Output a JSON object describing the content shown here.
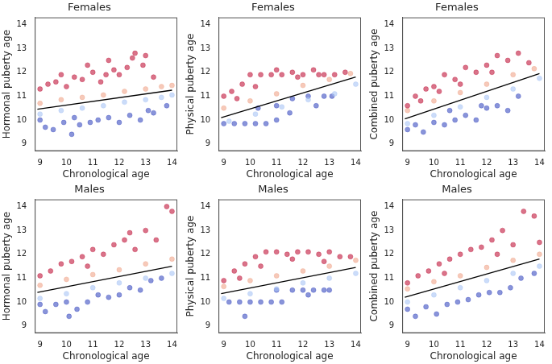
{
  "chart_data": [
    {
      "type": "scatter",
      "title": "Females",
      "x_label": "Chronological age",
      "y_label": "Hormonal puberty age",
      "xlim": [
        8.8,
        14.2
      ],
      "ylim": [
        8.7,
        14.3
      ],
      "xticks": [
        9,
        10,
        11,
        12,
        13,
        14
      ],
      "yticks": [
        9,
        10,
        11,
        12,
        13,
        14
      ],
      "grid": false,
      "series": [
        {
          "color": "#c0163a",
          "marker": "circle",
          "x": [
            9,
            9.3,
            9.6,
            10,
            10.3,
            10.6,
            11,
            11.3,
            11.6,
            12,
            12.3,
            12.6,
            13,
            13.3,
            10.8,
            11.8,
            12.5,
            9.8,
            12.9,
            11.5
          ],
          "y": [
            11.3,
            11.5,
            11.6,
            11.4,
            11.8,
            11.7,
            12.0,
            11.6,
            12.5,
            11.9,
            12.2,
            12.8,
            12.7,
            11.8,
            12.3,
            12.1,
            12.6,
            11.9,
            12.3,
            11.9
          ]
        },
        {
          "color": "#f0a58a",
          "marker": "circle",
          "x": [
            9,
            9.8,
            10.6,
            11.4,
            12.2,
            13,
            13.6,
            14
          ],
          "y": [
            10.7,
            10.85,
            10.95,
            11.05,
            11.2,
            11.3,
            11.4,
            11.45
          ]
        },
        {
          "color": "#a9c4f5",
          "marker": "circle",
          "x": [
            9,
            9.8,
            10.6,
            11.4,
            12.2,
            13,
            13.6,
            14
          ],
          "y": [
            10.25,
            10.4,
            10.5,
            10.6,
            10.75,
            10.85,
            10.95,
            11.05
          ]
        },
        {
          "color": "#3b4cc0",
          "marker": "circle",
          "x": [
            9,
            9.2,
            9.5,
            9.9,
            10.2,
            10.5,
            10.9,
            11.2,
            11.6,
            12,
            12.4,
            12.8,
            13.1,
            13.3,
            13.8,
            10.3
          ],
          "y": [
            10.0,
            9.7,
            9.6,
            9.9,
            9.4,
            9.8,
            9.9,
            10.0,
            10.1,
            9.9,
            10.2,
            10.0,
            10.4,
            10.3,
            10.6,
            10.1
          ]
        },
        {
          "type": "line",
          "color": "#000000",
          "line_style": "solid",
          "x": [
            8.9,
            14
          ],
          "y": [
            10.45,
            11.25
          ]
        }
      ]
    },
    {
      "type": "scatter",
      "title": "Females",
      "x_label": "Chronological age",
      "y_label": "Physical puberty age",
      "xlim": [
        8.8,
        14.2
      ],
      "ylim": [
        8.7,
        14.3
      ],
      "xticks": [
        9,
        10,
        11,
        12,
        13,
        14
      ],
      "yticks": [
        9,
        10,
        11,
        12,
        13,
        14
      ],
      "grid": false,
      "series": [
        {
          "color": "#c0163a",
          "marker": "circle",
          "x": [
            9,
            9.3,
            9.7,
            10,
            10.4,
            10.8,
            11.2,
            11.6,
            12,
            12.4,
            12.8,
            13.2,
            13.6,
            10.2,
            11,
            11.8,
            12.6,
            9.5
          ],
          "y": [
            11.0,
            11.2,
            11.5,
            11.9,
            11.9,
            11.9,
            11.9,
            12.0,
            11.9,
            12.1,
            11.9,
            11.9,
            12.0,
            11.4,
            12.1,
            11.8,
            11.9,
            10.9
          ]
        },
        {
          "color": "#f0a58a",
          "marker": "circle",
          "x": [
            9,
            10,
            11,
            12,
            13,
            13.8
          ],
          "y": [
            10.5,
            10.8,
            11.1,
            11.45,
            11.7,
            11.95
          ]
        },
        {
          "color": "#a9c4f5",
          "marker": "circle",
          "x": [
            9.2,
            10.2,
            11.2,
            12.2,
            13.2,
            14
          ],
          "y": [
            9.95,
            10.25,
            10.55,
            10.85,
            11.1,
            11.5
          ]
        },
        {
          "color": "#3b4cc0",
          "marker": "circle",
          "x": [
            9,
            9.4,
            9.8,
            10.2,
            10.6,
            11,
            10.3,
            11,
            11.6,
            12.2,
            12.8,
            13.1,
            11.5,
            12.5
          ],
          "y": [
            9.85,
            9.85,
            9.85,
            9.85,
            9.85,
            10.0,
            10.5,
            10.6,
            10.9,
            11.0,
            11.0,
            11.0,
            10.3,
            10.6
          ]
        },
        {
          "type": "line",
          "color": "#000000",
          "line_style": "solid",
          "x": [
            8.9,
            14
          ],
          "y": [
            10.1,
            11.8
          ]
        }
      ]
    },
    {
      "type": "scatter",
      "title": "Females",
      "x_label": "Chronological age",
      "y_label": "Combined puberty age",
      "xlim": [
        8.8,
        14.2
      ],
      "ylim": [
        8.7,
        14.3
      ],
      "xticks": [
        9,
        10,
        11,
        12,
        13,
        14
      ],
      "yticks": [
        9,
        10,
        11,
        12,
        13,
        14
      ],
      "grid": false,
      "series": [
        {
          "color": "#c0163a",
          "marker": "circle",
          "x": [
            9,
            9.3,
            9.7,
            10,
            10.4,
            10.8,
            11.2,
            11.6,
            12,
            12.4,
            12.8,
            13.2,
            13.6,
            10.2,
            11,
            12.2,
            9.5
          ],
          "y": [
            10.6,
            11.0,
            11.3,
            11.4,
            11.9,
            11.7,
            12.2,
            12.0,
            12.3,
            12.7,
            12.5,
            12.8,
            12.4,
            11.2,
            11.5,
            12.0,
            10.8
          ]
        },
        {
          "color": "#f0a58a",
          "marker": "circle",
          "x": [
            9,
            10,
            11,
            12,
            13,
            13.8
          ],
          "y": [
            10.4,
            10.8,
            11.15,
            11.5,
            11.9,
            12.15
          ]
        },
        {
          "color": "#a9c4f5",
          "marker": "circle",
          "x": [
            9,
            10,
            11,
            12,
            13,
            14
          ],
          "y": [
            9.85,
            10.2,
            10.55,
            10.95,
            11.3,
            11.75
          ]
        },
        {
          "color": "#3b4cc0",
          "marker": "circle",
          "x": [
            9,
            9.3,
            9.6,
            10,
            10.4,
            10.8,
            11.2,
            11.6,
            12,
            12.4,
            12.8,
            13.2,
            10.6,
            11.8
          ],
          "y": [
            9.6,
            9.8,
            9.5,
            9.9,
            9.8,
            10.0,
            10.2,
            10.0,
            10.5,
            10.6,
            10.4,
            11.0,
            10.4,
            10.6
          ]
        },
        {
          "type": "line",
          "color": "#000000",
          "line_style": "solid",
          "x": [
            8.9,
            14
          ],
          "y": [
            10.05,
            11.95
          ]
        }
      ]
    },
    {
      "type": "scatter",
      "title": "Males",
      "x_label": "Chronological age",
      "y_label": "Hormonal puberty age",
      "xlim": [
        8.8,
        14.2
      ],
      "ylim": [
        8.7,
        14.3
      ],
      "xticks": [
        9,
        10,
        11,
        12,
        13,
        14
      ],
      "yticks": [
        9,
        10,
        11,
        12,
        13,
        14
      ],
      "grid": false,
      "series": [
        {
          "color": "#c0163a",
          "marker": "circle",
          "x": [
            9,
            9.4,
            9.8,
            10.2,
            10.6,
            11,
            11.4,
            11.8,
            12.2,
            12.6,
            13,
            13.4,
            13.8,
            14,
            10.8,
            12.4
          ],
          "y": [
            11.1,
            11.3,
            11.6,
            11.7,
            11.9,
            12.2,
            12.0,
            12.4,
            12.6,
            12.2,
            13.0,
            12.6,
            14.0,
            13.8,
            11.5,
            12.9
          ]
        },
        {
          "color": "#f0a58a",
          "marker": "circle",
          "x": [
            9,
            10,
            11,
            12,
            13,
            14
          ],
          "y": [
            10.7,
            10.95,
            11.15,
            11.35,
            11.6,
            11.8
          ]
        },
        {
          "color": "#a9c4f5",
          "marker": "circle",
          "x": [
            9,
            10,
            11,
            12,
            13,
            14
          ],
          "y": [
            10.15,
            10.35,
            10.6,
            10.8,
            11.0,
            11.2
          ]
        },
        {
          "color": "#3b4cc0",
          "marker": "circle",
          "x": [
            9,
            9.2,
            9.6,
            10,
            10.4,
            10.8,
            11.2,
            11.6,
            12,
            12.4,
            12.8,
            13.2,
            13.6,
            10.1
          ],
          "y": [
            9.9,
            9.6,
            9.9,
            10.0,
            9.7,
            10.0,
            10.3,
            10.2,
            10.3,
            10.6,
            10.5,
            10.9,
            11.0,
            9.4
          ]
        },
        {
          "type": "line",
          "color": "#000000",
          "line_style": "solid",
          "x": [
            8.9,
            14
          ],
          "y": [
            10.4,
            11.5
          ]
        }
      ]
    },
    {
      "type": "scatter",
      "title": "Males",
      "x_label": "Chronological age",
      "y_label": "Physical puberty age",
      "xlim": [
        8.8,
        14.2
      ],
      "ylim": [
        8.7,
        14.3
      ],
      "xticks": [
        9,
        10,
        11,
        12,
        13,
        14
      ],
      "yticks": [
        9,
        10,
        11,
        12,
        13,
        14
      ],
      "grid": false,
      "series": [
        {
          "color": "#c0163a",
          "marker": "circle",
          "x": [
            9,
            9.4,
            9.8,
            10.2,
            10.6,
            11,
            11.4,
            11.8,
            12.2,
            12.6,
            13,
            13.4,
            13.8,
            10.4,
            11.6,
            12.8,
            9.6
          ],
          "y": [
            10.9,
            11.3,
            11.6,
            11.9,
            12.1,
            12.1,
            12.0,
            12.1,
            12.1,
            12.0,
            12.1,
            11.9,
            11.9,
            11.5,
            11.8,
            11.7,
            11.0
          ]
        },
        {
          "color": "#f0a58a",
          "marker": "circle",
          "x": [
            9,
            10,
            11,
            12,
            13,
            14
          ],
          "y": [
            10.65,
            10.9,
            11.1,
            11.3,
            11.5,
            11.75
          ]
        },
        {
          "color": "#a9c4f5",
          "marker": "circle",
          "x": [
            9,
            10,
            11,
            12,
            13,
            14
          ],
          "y": [
            10.15,
            10.35,
            10.55,
            10.8,
            11.0,
            11.2
          ]
        },
        {
          "color": "#3b4cc0",
          "marker": "circle",
          "x": [
            9.2,
            9.6,
            10,
            10.4,
            10.8,
            11.2,
            11.6,
            12,
            12.4,
            12.8,
            13,
            11,
            12.2,
            9.8
          ],
          "y": [
            10.0,
            10.0,
            10.0,
            10.0,
            10.0,
            10.0,
            10.5,
            10.5,
            10.5,
            10.5,
            10.5,
            10.5,
            10.3,
            9.4
          ]
        },
        {
          "type": "line",
          "color": "#000000",
          "line_style": "solid",
          "x": [
            8.9,
            14
          ],
          "y": [
            10.35,
            11.45
          ]
        }
      ]
    },
    {
      "type": "scatter",
      "title": "Males",
      "x_label": "Chronological age",
      "y_label": "Combined puberty age",
      "xlim": [
        8.8,
        14.2
      ],
      "ylim": [
        8.7,
        14.3
      ],
      "xticks": [
        9,
        10,
        11,
        12,
        13,
        14
      ],
      "yticks": [
        9,
        10,
        11,
        12,
        13,
        14
      ],
      "grid": false,
      "series": [
        {
          "color": "#c0163a",
          "marker": "circle",
          "x": [
            9,
            9.4,
            9.8,
            10.2,
            10.6,
            11,
            11.4,
            11.8,
            12.2,
            12.6,
            13,
            13.4,
            13.8,
            14,
            10.4,
            12.4
          ],
          "y": [
            10.8,
            11.1,
            11.3,
            11.6,
            11.8,
            12.0,
            12.2,
            12.3,
            12.6,
            13.0,
            12.4,
            13.8,
            13.6,
            12.5,
            11.2,
            12.0
          ]
        },
        {
          "color": "#f0a58a",
          "marker": "circle",
          "x": [
            9,
            10,
            11,
            12,
            13,
            14
          ],
          "y": [
            10.55,
            10.85,
            11.1,
            11.45,
            11.75,
            12.0
          ]
        },
        {
          "color": "#a9c4f5",
          "marker": "circle",
          "x": [
            9,
            10,
            11,
            12,
            13,
            14
          ],
          "y": [
            10.0,
            10.3,
            10.6,
            10.9,
            11.2,
            11.5
          ]
        },
        {
          "color": "#3b4cc0",
          "marker": "circle",
          "x": [
            9,
            9.3,
            9.7,
            10.1,
            10.5,
            10.9,
            11.3,
            11.7,
            12.1,
            12.5,
            12.9,
            13.3,
            13.8
          ],
          "y": [
            9.7,
            9.4,
            9.8,
            9.5,
            9.9,
            10.0,
            10.1,
            10.3,
            10.4,
            10.4,
            10.6,
            11.0,
            11.2
          ]
        },
        {
          "type": "line",
          "color": "#000000",
          "line_style": "solid",
          "x": [
            8.9,
            14
          ],
          "y": [
            10.2,
            11.8
          ]
        }
      ]
    }
  ]
}
